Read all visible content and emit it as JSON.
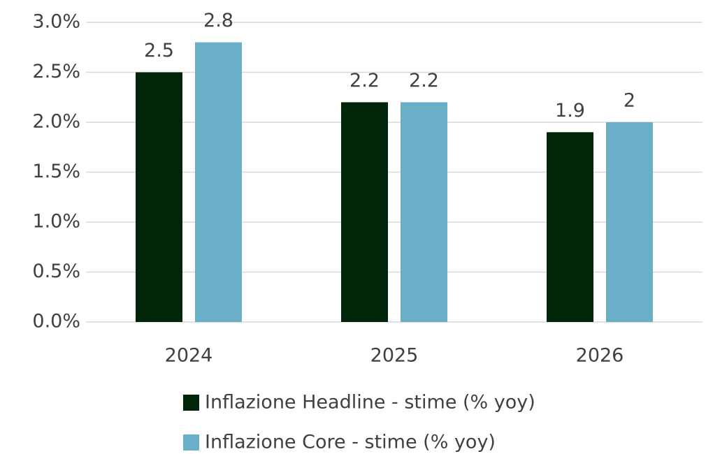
{
  "chart_data": {
    "type": "bar",
    "categories": [
      "2024",
      "2025",
      "2026"
    ],
    "series": [
      {
        "name": "Inflazione Headline - stime (% yoy)",
        "color": "#002508",
        "values": [
          2.5,
          2.2,
          1.9
        ]
      },
      {
        "name": "Inflazione Core - stime (% yoy)",
        "color": "#68afc7",
        "values": [
          2.8,
          2.2,
          2
        ]
      }
    ],
    "ylim": [
      0,
      3
    ],
    "yticks": [
      {
        "value": 0,
        "label": "0.0%"
      },
      {
        "value": 0.5,
        "label": "0.5%"
      },
      {
        "value": 1,
        "label": "1.0%"
      },
      {
        "value": 1.5,
        "label": "1.5%"
      },
      {
        "value": 2,
        "label": "2.0%"
      },
      {
        "value": 2.5,
        "label": "2.5%"
      },
      {
        "value": 3,
        "label": "3.0%"
      }
    ],
    "grid": true,
    "legend": "bottom"
  }
}
